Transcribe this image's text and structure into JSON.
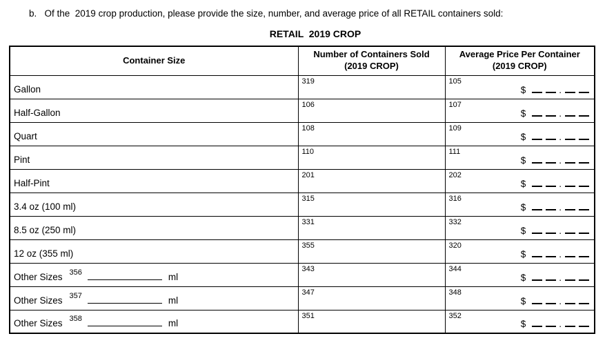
{
  "page": {
    "instruction": "b.   Of the  2019 crop production, please provide the size, number, and average price of all RETAIL containers sold:",
    "table_title": "RETAIL  2019 CROP"
  },
  "table": {
    "headers": {
      "container_size": "Container Size",
      "number_sold_line1": "Number of Containers Sold",
      "number_sold_line2": "(2019 CROP)",
      "avg_price_line1": "Average Price Per Container",
      "avg_price_line2": "(2019 CROP)"
    },
    "currency_symbol": "$",
    "decimal_point": ".",
    "ml_suffix": "ml",
    "rows": [
      {
        "label": "Gallon",
        "number_code": "319",
        "price_code": "105"
      },
      {
        "label": "Half-Gallon",
        "number_code": "106",
        "price_code": "107"
      },
      {
        "label": "Quart",
        "number_code": "108",
        "price_code": "109"
      },
      {
        "label": "Pint",
        "number_code": "110",
        "price_code": "111"
      },
      {
        "label": "Half-Pint",
        "number_code": "201",
        "price_code": "202"
      },
      {
        "label": "3.4 oz (100 ml)",
        "number_code": "315",
        "price_code": "316"
      },
      {
        "label": "8.5 oz (250 ml)",
        "number_code": "331",
        "price_code": "332"
      },
      {
        "label": "12 oz (355 ml)",
        "number_code": "355",
        "price_code": "320"
      },
      {
        "label": "Other Sizes",
        "size_code": "356",
        "number_code": "343",
        "price_code": "344"
      },
      {
        "label": "Other Sizes",
        "size_code": "357",
        "number_code": "347",
        "price_code": "348"
      },
      {
        "label": "Other Sizes",
        "size_code": "358",
        "number_code": "351",
        "price_code": "352"
      }
    ]
  }
}
